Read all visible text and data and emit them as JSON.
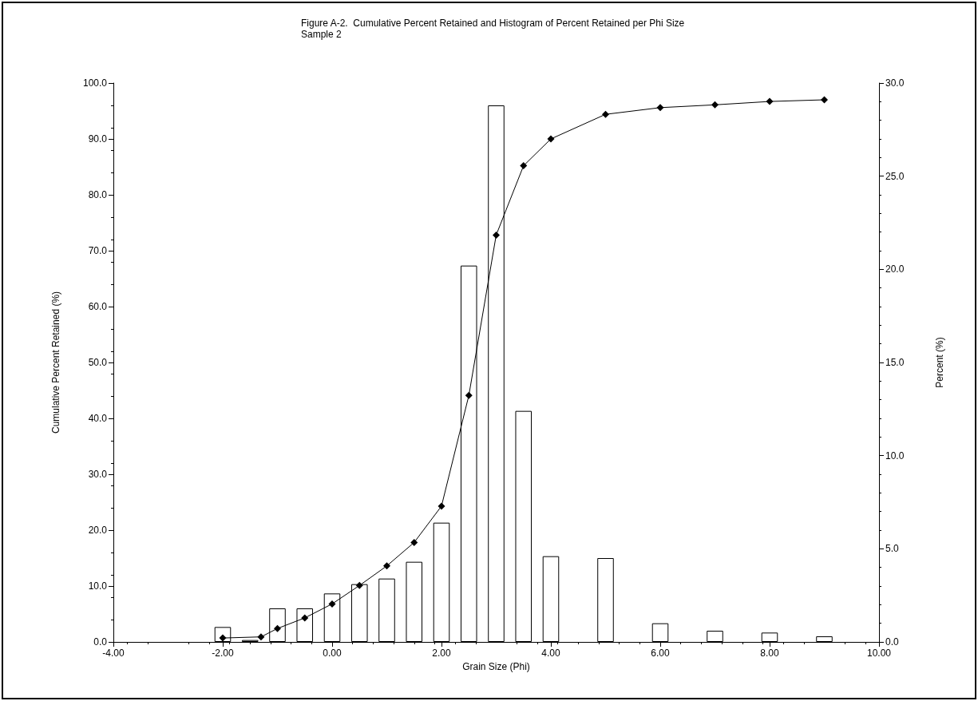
{
  "chart_data": {
    "type": "bar",
    "title": "Figure A-2.  Cumulative Percent Retained and Histogram of Percent Retained per Phi Size",
    "subtitle": "Sample 2",
    "xlabel": "Grain Size (Phi)",
    "ylabel": "Cumulative Percent Retained (%)",
    "y2label": "Percent (%)",
    "series": [
      {
        "axis": "y2",
        "color": "#ffffff",
        "x": [
          -2,
          -1.5,
          -1,
          -0.5,
          0,
          0.5,
          1,
          1.5,
          2,
          2.5,
          3,
          3.5,
          4,
          5,
          6,
          7,
          8,
          9
        ],
        "values": [
          0.8,
          0.1,
          1.8,
          1.8,
          2.6,
          3.1,
          3.4,
          4.3,
          6.4,
          20.2,
          28.8,
          12.4,
          4.6,
          4.5,
          1.0,
          0.6,
          0.5,
          0.3
        ]
      },
      {
        "type": "line",
        "color": "#000000",
        "marker": "diamond",
        "x": [
          -2,
          -1.3,
          -1,
          -0.5,
          0,
          0.5,
          1,
          1.5,
          2,
          2.5,
          3,
          3.5,
          4,
          5,
          6,
          7,
          8,
          9
        ],
        "values": [
          0.7,
          0.9,
          2.4,
          4.3,
          6.8,
          10.1,
          13.6,
          17.8,
          24.3,
          44.1,
          72.8,
          85.2,
          90.0,
          94.4,
          95.6,
          96.1,
          96.7,
          97.0
        ]
      }
    ],
    "xlim": [
      -4,
      10
    ],
    "xticks": [
      {
        "value": -4,
        "label": "-4.00"
      },
      {
        "value": -2,
        "label": "-2.00"
      },
      {
        "value": 0,
        "label": "0.00"
      },
      {
        "value": 2,
        "label": "2.00"
      },
      {
        "value": 4,
        "label": "4.00"
      },
      {
        "value": 6,
        "label": "6.00"
      },
      {
        "value": 8,
        "label": "8.00"
      },
      {
        "value": 10,
        "label": "10.00"
      }
    ],
    "ylim": [
      0,
      100
    ],
    "yticks": [
      {
        "value": 0,
        "label": "0.0"
      },
      {
        "value": 10,
        "label": "10.0"
      },
      {
        "value": 20,
        "label": "20.0"
      },
      {
        "value": 30,
        "label": "30.0"
      },
      {
        "value": 40,
        "label": "40.0"
      },
      {
        "value": 50,
        "label": "50.0"
      },
      {
        "value": 60,
        "label": "60.0"
      },
      {
        "value": 70,
        "label": "70.0"
      },
      {
        "value": 80,
        "label": "80.0"
      },
      {
        "value": 90,
        "label": "90.0"
      },
      {
        "value": 100,
        "label": "100.0"
      }
    ],
    "y2lim": [
      0,
      30
    ],
    "y2ticks": [
      {
        "value": 0,
        "label": "0.0"
      },
      {
        "value": 5,
        "label": "5.0"
      },
      {
        "value": 10,
        "label": "10.0"
      },
      {
        "value": 15,
        "label": "15.0"
      },
      {
        "value": 20,
        "label": "20.0"
      },
      {
        "value": 25,
        "label": "25.0"
      },
      {
        "value": 30,
        "label": "30.0"
      }
    ],
    "grid": false
  }
}
